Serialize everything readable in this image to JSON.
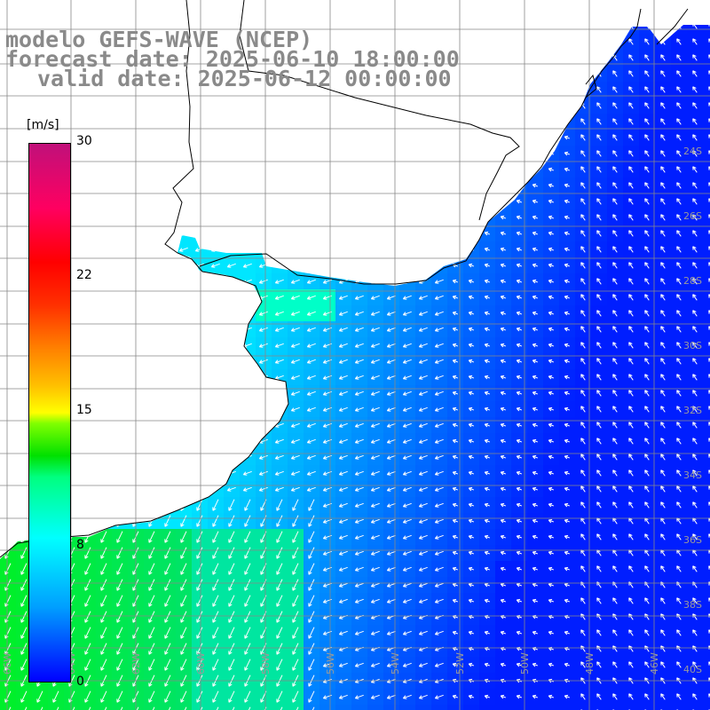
{
  "title": {
    "line1": "modelo GEFS-WAVE (NCEP)",
    "line2": "forecast date: 2025-06-10 18:00:00",
    "line3": "valid date: 2025-06-12 00:00:00"
  },
  "colorbar": {
    "unit": "[m/s]",
    "ticks": [
      "30",
      "22",
      "15",
      "8",
      "0"
    ],
    "min": 0,
    "max": 30,
    "colors": [
      "#0000ff",
      "#00a0ff",
      "#00ffff",
      "#00e000",
      "#ffff00",
      "#ff8000",
      "#ff0000",
      "#c0107a"
    ]
  },
  "map": {
    "variable": "wind",
    "land_color": "#ffffff",
    "gridline_color": "#888888",
    "longitude_labels": [
      "66W",
      "64W",
      "62W",
      "60W",
      "58W",
      "56W",
      "54W",
      "52W",
      "50W",
      "48W",
      "46W"
    ],
    "latitude_labels": [
      "40S",
      "38S",
      "36S",
      "34S",
      "32S",
      "30S",
      "28S",
      "26S",
      "24S"
    ],
    "arrow_color": "#ffffff"
  }
}
